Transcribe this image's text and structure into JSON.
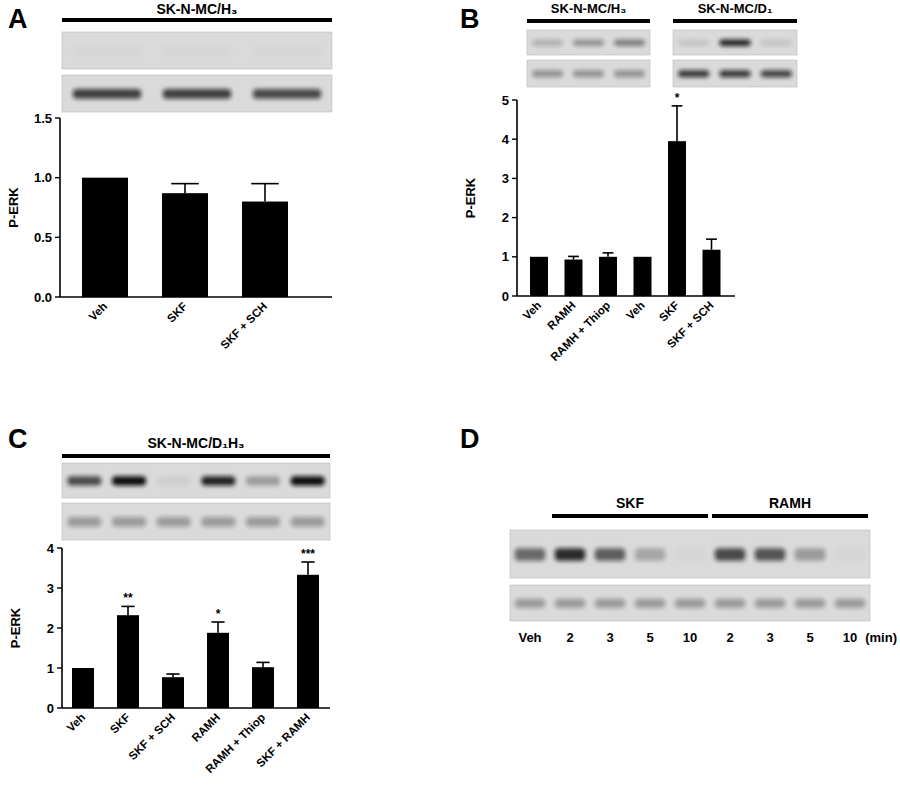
{
  "chart_data": [
    {
      "type": "bar",
      "panel_label": "A",
      "title": "SK-N-MC/H₃",
      "ylabel": "P-ERK",
      "categories": [
        "Veh",
        "SKF",
        "SKF + SCH"
      ],
      "values": [
        1.0,
        0.87,
        0.8
      ],
      "errors": [
        null,
        0.08,
        0.15
      ],
      "color": "#000000",
      "ylim": [
        0,
        1.5
      ],
      "yticks": [
        {
          "value": 0,
          "label": "0.0"
        },
        {
          "value": 0.5,
          "label": "0.5"
        },
        {
          "value": 1,
          "label": "1.0"
        },
        {
          "value": 1.5,
          "label": "1.5"
        }
      ]
    },
    {
      "type": "bar",
      "panel_label": "B",
      "ylabel": "P-ERK",
      "groups": [
        {
          "name": "SK-N-MC/H₃",
          "size": 3
        },
        {
          "name": "SK-N-MC/D₁",
          "size": 3
        }
      ],
      "categories": [
        "Veh",
        "RAMH",
        "RAMH + Thiop",
        "Veh",
        "SKF",
        "SKF + SCH"
      ],
      "values": [
        1.0,
        0.93,
        1.0,
        1.0,
        3.95,
        1.18
      ],
      "errors": [
        null,
        0.08,
        0.1,
        null,
        0.9,
        0.27
      ],
      "significance": [
        null,
        null,
        null,
        null,
        "*",
        null
      ],
      "color": "#000000",
      "ylim": [
        0,
        5
      ],
      "yticks": [
        0,
        1,
        2,
        3,
        4,
        5
      ]
    },
    {
      "type": "bar",
      "panel_label": "C",
      "title": "SK-N-MC/D₁H₃",
      "ylabel": "P-ERK",
      "categories": [
        "Veh",
        "SKF",
        "SKF + SCH",
        "RAMH",
        "RAMH + Thiop",
        "SKF + RAMH"
      ],
      "values": [
        1.0,
        2.32,
        0.77,
        1.88,
        1.02,
        3.33
      ],
      "errors": [
        null,
        0.22,
        0.08,
        0.27,
        0.12,
        0.32
      ],
      "significance": [
        null,
        "**",
        null,
        "*",
        null,
        "***"
      ],
      "color": "#000000",
      "ylim": [
        0,
        4
      ],
      "yticks": [
        0,
        1,
        2,
        3,
        4
      ]
    }
  ],
  "blot_panel": {
    "panel_label": "D",
    "groups": [
      {
        "name": "SKF",
        "size": 4
      },
      {
        "name": "RAMH",
        "size": 4
      }
    ],
    "lanes": [
      "Veh",
      "2",
      "3",
      "5",
      "10",
      "2",
      "3",
      "5",
      "10"
    ],
    "unit_label": "(min)"
  }
}
